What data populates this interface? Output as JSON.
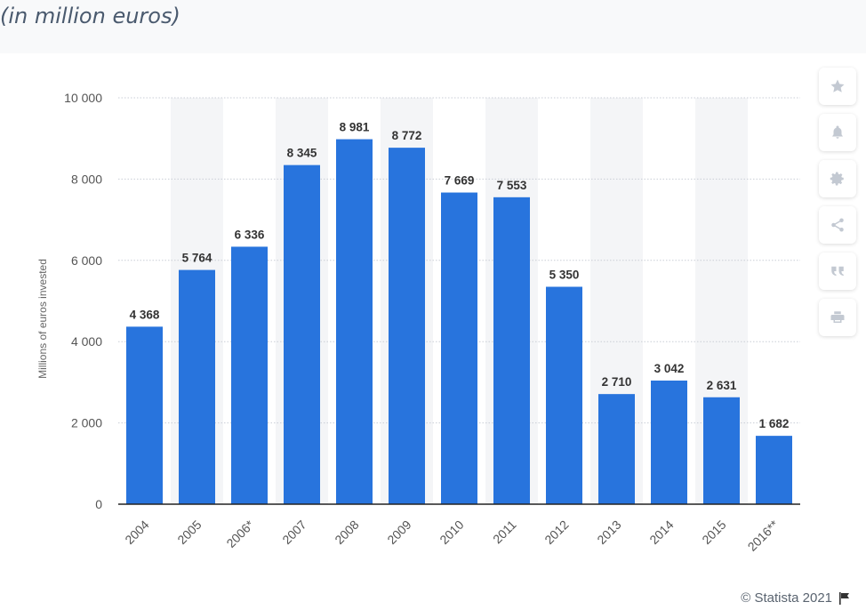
{
  "header": {
    "subtitle": "(in million euros)"
  },
  "toolbar": {
    "icons": [
      "star-icon",
      "bell-icon",
      "gear-icon",
      "share-icon",
      "quote-icon",
      "print-icon"
    ]
  },
  "footer": {
    "credit": "© Statista 2021"
  },
  "colors": {
    "bar": "#2874dd",
    "grid": "#c9ced6",
    "band": "#f4f5f7",
    "axis": "#222222",
    "text": "#555555"
  },
  "chart_data": {
    "type": "bar",
    "categories": [
      "2004",
      "2005",
      "2006*",
      "2007",
      "2008",
      "2009",
      "2010",
      "2011",
      "2012",
      "2013",
      "2014",
      "2015",
      "2016**"
    ],
    "values": [
      4368,
      5764,
      6336,
      8345,
      8981,
      8772,
      7669,
      7553,
      5350,
      2710,
      3042,
      2631,
      1682
    ],
    "value_labels": [
      "4 368",
      "5 764",
      "6 336",
      "8 345",
      "8 981",
      "8 772",
      "7 669",
      "7 553",
      "5 350",
      "2 710",
      "3 042",
      "2 631",
      "1 682"
    ],
    "ylabel": "Millions of euros invested",
    "xlabel": "",
    "ylim": [
      0,
      10000
    ],
    "yticks": [
      0,
      2000,
      4000,
      6000,
      8000,
      10000
    ],
    "ytick_labels": [
      "0",
      "2 000",
      "4 000",
      "6 000",
      "8 000",
      "10 000"
    ],
    "grid": true
  }
}
